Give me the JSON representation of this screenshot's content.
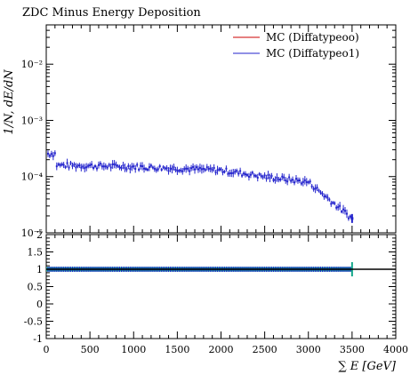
{
  "chart_data": [
    {
      "type": "scatter",
      "title": "ZDC Minus Energy Deposition",
      "ylabel": "1/N, dE/dN",
      "yscale": "log",
      "ylim": [
        1e-05,
        0.05
      ],
      "xlim": [
        0,
        4000
      ],
      "grid": false,
      "legend_position": "top-right",
      "ytick_labels": [
        "10⁻⁵",
        "10⁻⁴",
        "10⁻³",
        "10⁻²"
      ],
      "ytick_values": [
        1e-05,
        0.0001,
        0.001,
        0.01
      ],
      "series": [
        {
          "name": "MC (Diffatypeoo)",
          "color": "#cc0000",
          "x": [
            125,
            1000,
            2000,
            2500,
            3000,
            3500
          ],
          "y": [
            0.00016,
            0.00015,
            0.00013,
            0.0001,
            8e-05,
            1.8e-05
          ]
        },
        {
          "name": "MC (Diffatypeo1)",
          "color": "#2222cc",
          "x": [
            125,
            1000,
            2000,
            2500,
            3000,
            3500
          ],
          "y": [
            0.00016,
            0.00015,
            0.00013,
            0.0001,
            8e-05,
            1.8e-05
          ]
        }
      ]
    },
    {
      "type": "scatter",
      "xlabel": "∑ E [GeV]",
      "ylim": [
        -1,
        2
      ],
      "xlim": [
        0,
        4000
      ],
      "grid": false,
      "ytick_labels": [
        "-1",
        "-0.5",
        "0",
        "0.5",
        "1",
        "1.5",
        "2"
      ],
      "ytick_values": [
        -1,
        -0.5,
        0,
        0.5,
        1,
        1.5,
        2
      ],
      "xtick_labels": [
        "0",
        "500",
        "1000",
        "1500",
        "2000",
        "2500",
        "3000",
        "3500",
        "4000"
      ],
      "xtick_values": [
        0,
        500,
        1000,
        1500,
        2000,
        2500,
        3000,
        3500,
        4000
      ],
      "reference_line": 1,
      "ratio_range": [
        0,
        3500
      ],
      "colors": {
        "band": "#14a88a",
        "points": "#2222cc",
        "reference": "#000000"
      }
    }
  ]
}
